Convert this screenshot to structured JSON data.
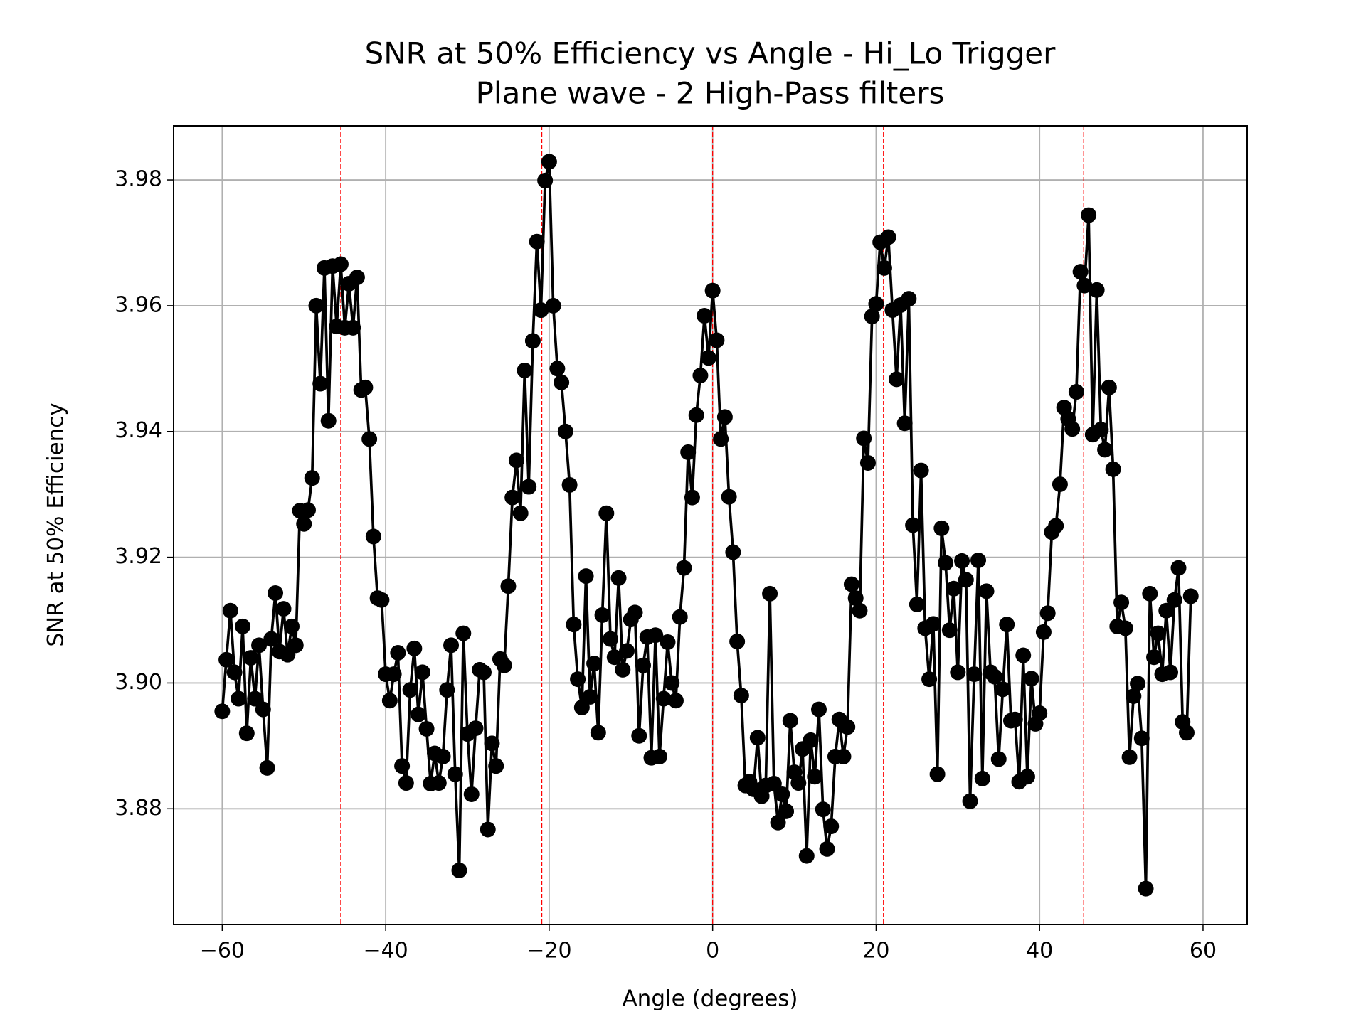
{
  "chart_data": {
    "type": "line",
    "title": "SNR at 50% Efficiency vs Angle - Hi_Lo Trigger",
    "subtitle": "Plane wave - 2 High-Pass filters",
    "x_label": "Angle (degrees)",
    "y_label": "SNR at 50% Efficiency",
    "xlim": [
      -65.95,
      65.4
    ],
    "ylim": [
      3.8616,
      3.9886
    ],
    "xticks": [
      {
        "value": -60,
        "label": "−60"
      },
      {
        "value": -40,
        "label": "−40"
      },
      {
        "value": -20,
        "label": "−20"
      },
      0,
      20,
      40,
      60
    ],
    "yticks": [
      3.88,
      {
        "value": 3.9,
        "label": "3.90"
      },
      3.92,
      3.94,
      3.96,
      3.98
    ],
    "grid": true,
    "vlines": [
      -45.5,
      -20.9,
      0,
      20.9,
      45.4
    ],
    "vline_color": "#ff0000",
    "color": "#000000",
    "x": [
      -60,
      -59.5,
      -59,
      -58.5,
      -58,
      -57.5,
      -57,
      -56.5,
      -56,
      -55.5,
      -55,
      -54.5,
      -54,
      -53.5,
      -53,
      -52.5,
      -52,
      -51.5,
      -51,
      -50.5,
      -50,
      -49.5,
      -49,
      -48.5,
      -48,
      -47.5,
      -47,
      -46.5,
      -46,
      -45.5,
      -45,
      -44.5,
      -44,
      -43.5,
      -43,
      -42.5,
      -42,
      -41.5,
      -41,
      -40.5,
      -40,
      -39.5,
      -39,
      -38.5,
      -38,
      -37.5,
      -37,
      -36.5,
      -36,
      -35.5,
      -35,
      -34.5,
      -34,
      -33.5,
      -33,
      -32.5,
      -32,
      -31.5,
      -31,
      -30.5,
      -30,
      -29.5,
      -29,
      -28.5,
      -28,
      -27.5,
      -27,
      -26.5,
      -26,
      -25.5,
      -25,
      -24.5,
      -24,
      -23.5,
      -23,
      -22.5,
      -22,
      -21.5,
      -21,
      -20.5,
      -20,
      -19.5,
      -19,
      -18.5,
      -18,
      -17.5,
      -17,
      -16.5,
      -16,
      -15.5,
      -15,
      -14.5,
      -14,
      -13.5,
      -13,
      -12.5,
      -12,
      -11.5,
      -11,
      -10.5,
      -10,
      -9.5,
      -9,
      -8.5,
      -8,
      -7.5,
      -7,
      -6.5,
      -6,
      -5.5,
      -5,
      -4.5,
      -4,
      -3.5,
      -3,
      -2.5,
      -2,
      -1.5,
      -1,
      -0.5,
      0,
      0.5,
      1,
      1.5,
      2,
      2.5,
      3,
      3.5,
      4,
      4.5,
      5,
      5.5,
      6,
      6.5,
      7,
      7.5,
      8,
      8.5,
      9,
      9.5,
      10,
      10.5,
      11,
      11.5,
      12,
      12.5,
      13,
      13.5,
      14,
      14.5,
      15,
      15.5,
      16,
      16.5,
      17,
      17.5,
      18,
      18.5,
      19,
      19.5,
      20,
      20.5,
      21,
      21.5,
      22,
      22.5,
      23,
      23.5,
      24,
      24.5,
      25,
      25.5,
      26,
      26.5,
      27,
      27.5,
      28,
      28.5,
      29,
      29.5,
      30,
      30.5,
      31,
      31.5,
      32,
      32.5,
      33,
      33.5,
      34,
      34.5,
      35,
      35.5,
      36,
      36.5,
      37,
      37.5,
      38,
      38.5,
      39,
      39.5,
      40,
      40.5,
      41,
      41.5,
      42,
      42.5,
      43,
      43.5,
      44,
      44.5,
      45,
      45.5,
      46,
      46.5,
      47,
      47.5,
      48,
      48.5,
      49,
      49.5,
      50,
      50.5,
      51,
      51.5,
      52,
      52.5,
      53,
      53.5,
      54,
      54.5,
      55,
      55.5,
      56,
      56.5,
      57,
      57.5,
      58,
      58.5
    ],
    "values": [
      3.8955,
      3.9037,
      3.9115,
      3.9017,
      3.8975,
      3.909,
      3.892,
      3.904,
      3.8975,
      3.906,
      3.8958,
      3.8865,
      3.907,
      3.9143,
      3.905,
      3.9118,
      3.9045,
      3.909,
      3.906,
      3.9274,
      3.9253,
      3.9275,
      3.9326,
      3.96,
      3.9476,
      3.966,
      3.9417,
      3.9663,
      3.9567,
      3.9666,
      3.9565,
      3.9635,
      3.9565,
      3.9645,
      3.9466,
      3.947,
      3.9388,
      3.9233,
      3.9135,
      3.9132,
      3.9014,
      3.8972,
      3.9014,
      3.9048,
      3.8868,
      3.8841,
      3.8989,
      3.9055,
      3.895,
      3.9017,
      3.8927,
      3.884,
      3.8888,
      3.8841,
      3.8883,
      3.8989,
      3.906,
      3.8855,
      3.8702,
      3.9079,
      3.8919,
      3.8823,
      3.8928,
      3.9021,
      3.9017,
      3.8767,
      3.8904,
      3.8868,
      3.9038,
      3.9028,
      3.9154,
      3.9295,
      3.9354,
      3.927,
      3.9497,
      3.9312,
      3.9544,
      3.9702,
      3.9593,
      3.9799,
      3.9829,
      3.96,
      3.95,
      3.9478,
      3.94,
      3.9315,
      3.9093,
      3.9006,
      3.8961,
      3.917,
      3.8978,
      3.9031,
      3.8921,
      3.9108,
      3.927,
      3.907,
      3.9041,
      3.9167,
      3.9021,
      3.9051,
      3.9101,
      3.9112,
      3.8916,
      3.9028,
      3.9073,
      3.8881,
      3.9076,
      3.8883,
      3.8975,
      3.9065,
      3.9,
      3.8972,
      3.9105,
      3.9183,
      3.9367,
      3.9295,
      3.9426,
      3.9489,
      3.9584,
      3.9517,
      3.9624,
      3.9545,
      3.9388,
      3.9423,
      3.9296,
      3.9208,
      3.9066,
      3.898,
      3.8837,
      3.8843,
      3.8831,
      3.8913,
      3.882,
      3.8837,
      3.9142,
      3.884,
      3.8778,
      3.8823,
      3.8796,
      3.894,
      3.8858,
      3.8841,
      3.8895,
      3.8725,
      3.8909,
      3.8851,
      3.8958,
      3.8799,
      3.8736,
      3.8772,
      3.8883,
      3.8942,
      3.8883,
      3.893,
      3.9157,
      3.9135,
      3.9115,
      3.9389,
      3.935,
      3.9583,
      3.9603,
      3.9701,
      3.966,
      3.9709,
      3.9593,
      3.9483,
      3.9601,
      3.9413,
      3.9611,
      3.9251,
      3.9125,
      3.9338,
      3.9087,
      3.9006,
      3.9094,
      3.8855,
      3.9246,
      3.9191,
      3.9084,
      3.915,
      3.9017,
      3.9194,
      3.9164,
      3.8812,
      3.9014,
      3.9195,
      3.8848,
      3.9146,
      3.9017,
      3.901,
      3.8879,
      3.899,
      3.9093,
      3.894,
      3.8942,
      3.8843,
      3.9044,
      3.8851,
      3.9007,
      3.8935,
      3.8952,
      3.9081,
      3.9111,
      3.924,
      3.925,
      3.9316,
      3.9438,
      3.942,
      3.9404,
      3.9463,
      3.9654,
      3.9632,
      3.9744,
      3.9395,
      3.9625,
      3.9403,
      3.9371,
      3.947,
      3.934,
      3.909,
      3.9128,
      3.9087,
      3.8882,
      3.8979,
      3.8999,
      3.8912,
      3.8673,
      3.9142,
      3.9041,
      3.9079,
      3.9014,
      3.9115,
      3.9017,
      3.9132,
      3.9183,
      3.8938,
      3.8921,
      3.9138
    ]
  }
}
